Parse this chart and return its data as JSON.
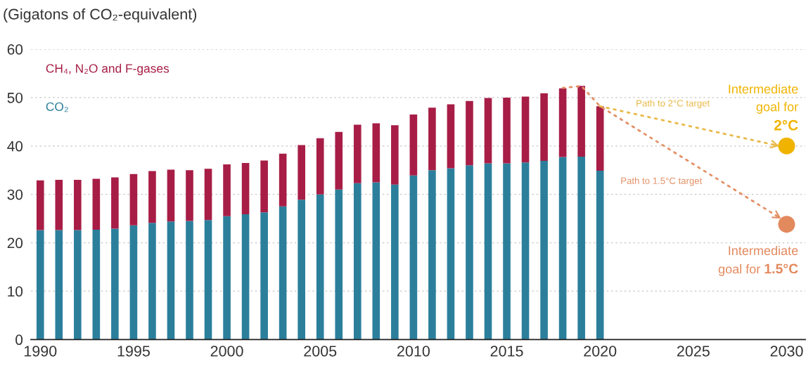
{
  "chart_data": {
    "type": "bar",
    "stacked": true,
    "ylabel": "(Gigatons of CO₂-equivalent)",
    "x": [
      1990,
      1991,
      1992,
      1993,
      1994,
      1995,
      1996,
      1997,
      1998,
      1999,
      2000,
      2001,
      2002,
      2003,
      2004,
      2005,
      2006,
      2007,
      2008,
      2009,
      2010,
      2011,
      2012,
      2013,
      2014,
      2015,
      2016,
      2017,
      2018,
      2019,
      2020
    ],
    "series": [
      {
        "name": "CO₂",
        "color": "#2b7f9b",
        "values": [
          22.6,
          22.6,
          22.6,
          22.7,
          22.9,
          23.6,
          24.1,
          24.4,
          24.5,
          24.7,
          25.5,
          25.9,
          26.3,
          27.5,
          28.9,
          30.0,
          31.0,
          32.3,
          32.5,
          32.0,
          33.9,
          35.0,
          35.4,
          36.0,
          36.4,
          36.4,
          36.6,
          36.9,
          37.7,
          37.8,
          34.9
        ]
      },
      {
        "name": "CH₄, N₂O and F-gases",
        "color": "#a71d46",
        "values": [
          10.3,
          10.4,
          10.4,
          10.5,
          10.6,
          10.6,
          10.7,
          10.7,
          10.5,
          10.6,
          10.7,
          10.6,
          10.7,
          10.9,
          11.3,
          11.6,
          11.9,
          12.1,
          12.2,
          12.3,
          12.6,
          12.9,
          13.2,
          13.3,
          13.5,
          13.6,
          13.6,
          14.0,
          14.2,
          14.6,
          13.3
        ]
      },
      {
        "name": "Path to 1.5°C target",
        "type": "line",
        "line_style": "dotted",
        "color": "#e39166",
        "x": [
          2018,
          2019,
          2020,
          2029.7
        ],
        "values": [
          52.0,
          52.4,
          48.2,
          25.0
        ]
      },
      {
        "name": "Path to 2°C target",
        "type": "line",
        "line_style": "dotted",
        "color": "#e9b947",
        "x": [
          2020,
          2029.6
        ],
        "values": [
          48.2,
          40.0
        ]
      },
      {
        "name": "Intermediate\ngoal for\n2°C",
        "type": "scatter",
        "marker": "circle",
        "color": "#f0b400",
        "x": [
          2030
        ],
        "values": [
          40
        ]
      },
      {
        "name": "Intermediate\ngoal for 1.5°C",
        "type": "scatter",
        "marker": "circle",
        "color": "#e3895e",
        "x": [
          2030
        ],
        "values": [
          23.8
        ]
      }
    ],
    "xlim": [
      1989.5,
      2031
    ],
    "xticks": [
      1990,
      1995,
      2000,
      2005,
      2010,
      2015,
      2020,
      2025,
      2030
    ],
    "ylim": [
      0,
      60
    ],
    "yticks": [
      0,
      10,
      20,
      30,
      40,
      50,
      60
    ],
    "grid": "y",
    "legend": "top left"
  }
}
